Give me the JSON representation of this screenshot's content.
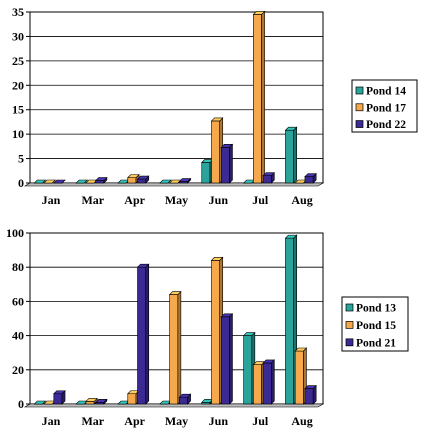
{
  "chart_data": [
    {
      "type": "bar",
      "categories": [
        "Jan",
        "Mar",
        "Apr",
        "May",
        "Jun",
        "Jul",
        "Aug"
      ],
      "ylim": [
        0,
        35
      ],
      "yticks": [
        0,
        5,
        10,
        15,
        20,
        25,
        30,
        35
      ],
      "grid": true,
      "legend_position": "right",
      "series": [
        {
          "name": "Pond 14",
          "color": "#2aa39a",
          "values": [
            0,
            0,
            0,
            0,
            4.2,
            0,
            10.8
          ]
        },
        {
          "name": "Pond 17",
          "color": "#f5a94c",
          "values": [
            0,
            0,
            1.1,
            0,
            12.7,
            34.5,
            0
          ]
        },
        {
          "name": "Pond 22",
          "color": "#3b2a93",
          "values": [
            0,
            0.5,
            0.8,
            0.3,
            7.3,
            1.5,
            1.3
          ]
        }
      ]
    },
    {
      "type": "bar",
      "categories": [
        "Jan",
        "Mar",
        "Apr",
        "May",
        "Jun",
        "Jul",
        "Aug"
      ],
      "ylim": [
        0,
        100
      ],
      "yticks": [
        0,
        20,
        40,
        60,
        80,
        100
      ],
      "grid": true,
      "legend_position": "right",
      "series": [
        {
          "name": "Pond 13",
          "color": "#2aa39a",
          "values": [
            0,
            0,
            0,
            0,
            1,
            40,
            97
          ]
        },
        {
          "name": "Pond 15",
          "color": "#f5a94c",
          "values": [
            0,
            1.5,
            6,
            64,
            84,
            23,
            31
          ]
        },
        {
          "name": "Pond 21",
          "color": "#3b2a93",
          "values": [
            6,
            1,
            80,
            4,
            51,
            24,
            9
          ]
        }
      ]
    }
  ]
}
